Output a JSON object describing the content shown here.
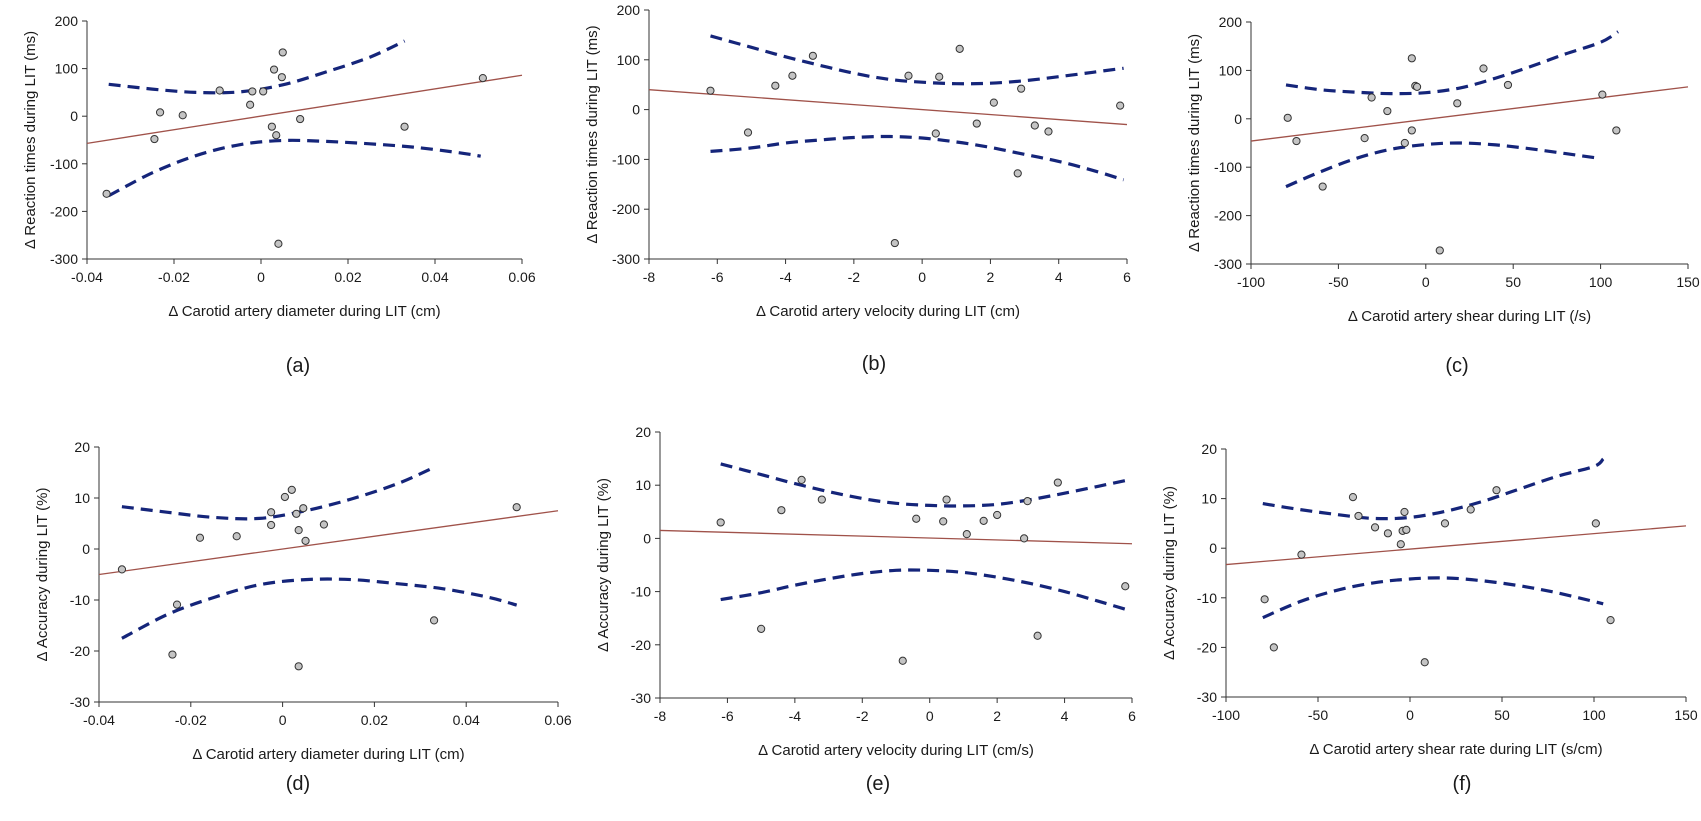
{
  "figure": {
    "colors": {
      "fit_line": "#a0524a",
      "ci_band": "#15257a",
      "point_fill": "#c4c4c4",
      "point_stroke": "#333333",
      "axis": "#333333"
    }
  },
  "chart_data": [
    {
      "type": "scatter",
      "panel_label": "(a)",
      "xlabel": "Δ Carotid artery diameter during LIT (cm)",
      "ylabel": "Δ Reaction times during LIT (ms)",
      "xlim": [
        -0.04,
        0.06
      ],
      "ylim": [
        -300,
        200
      ],
      "xticks": [
        -0.04,
        -0.02,
        0,
        0.02,
        0.04,
        0.06
      ],
      "xtick_labels": [
        "-0.04",
        "-0.02",
        "0",
        "0.02",
        "0.04",
        "0.06"
      ],
      "yticks": [
        -300,
        -200,
        -100,
        0,
        100,
        200
      ],
      "ytick_labels": [
        "-300",
        "-200",
        "-100",
        "0",
        "100",
        "200"
      ],
      "points": [
        [
          -0.0355,
          -163
        ],
        [
          -0.0245,
          -48
        ],
        [
          -0.0232,
          8
        ],
        [
          -0.018,
          2
        ],
        [
          -0.0095,
          54
        ],
        [
          -0.0025,
          24
        ],
        [
          -0.002,
          52
        ],
        [
          0.0005,
          52
        ],
        [
          0.0025,
          -22
        ],
        [
          0.003,
          98
        ],
        [
          0.0035,
          -40
        ],
        [
          0.004,
          -268
        ],
        [
          0.0048,
          82
        ],
        [
          0.005,
          134
        ],
        [
          0.009,
          -6
        ],
        [
          0.033,
          -22
        ],
        [
          0.051,
          80
        ]
      ],
      "fit_line": [
        [
          -0.04,
          -57
        ],
        [
          0.06,
          86
        ]
      ],
      "ci_upper": [
        [
          -0.035,
          67
        ],
        [
          -0.025,
          57
        ],
        [
          -0.015,
          50
        ],
        [
          -0.005,
          51
        ],
        [
          0.005,
          66
        ],
        [
          0.015,
          93
        ],
        [
          0.025,
          124
        ],
        [
          0.033,
          158
        ]
      ],
      "ci_lower": [
        [
          -0.035,
          -167
        ],
        [
          -0.025,
          -119
        ],
        [
          -0.015,
          -83
        ],
        [
          -0.005,
          -60
        ],
        [
          0.005,
          -51
        ],
        [
          0.015,
          -53
        ],
        [
          0.025,
          -58
        ],
        [
          0.035,
          -65
        ],
        [
          0.045,
          -76
        ],
        [
          0.0505,
          -84
        ]
      ]
    },
    {
      "type": "scatter",
      "panel_label": "(b)",
      "xlabel": "Δ Carotid artery velocity during LIT (cm)",
      "ylabel": "Δ Reaction times during LIT (ms)",
      "xlim": [
        -8,
        6
      ],
      "ylim": [
        -300,
        200
      ],
      "xticks": [
        -8,
        -6,
        -4,
        -2,
        0,
        2,
        4,
        6
      ],
      "xtick_labels": [
        "-8",
        "-6",
        "-4",
        "-2",
        "0",
        "2",
        "4",
        "6"
      ],
      "yticks": [
        -300,
        -200,
        -100,
        0,
        100,
        200
      ],
      "ytick_labels": [
        "-300",
        "-200",
        "-100",
        "0",
        "100",
        "200"
      ],
      "points": [
        [
          -6.2,
          38
        ],
        [
          -5.1,
          -46
        ],
        [
          -4.3,
          48
        ],
        [
          -3.8,
          68
        ],
        [
          -3.2,
          108
        ],
        [
          -0.8,
          -268
        ],
        [
          -0.4,
          68
        ],
        [
          0.4,
          -48
        ],
        [
          0.5,
          66
        ],
        [
          1.1,
          122
        ],
        [
          1.6,
          -28
        ],
        [
          2.1,
          14
        ],
        [
          2.8,
          -128
        ],
        [
          2.9,
          42
        ],
        [
          3.3,
          -32
        ],
        [
          3.7,
          -44
        ],
        [
          5.8,
          8
        ]
      ],
      "fit_line": [
        [
          -8,
          40
        ],
        [
          6,
          -30
        ]
      ],
      "ci_upper": [
        [
          -6.2,
          148
        ],
        [
          -5,
          125
        ],
        [
          -4,
          106
        ],
        [
          -3,
          89
        ],
        [
          -2,
          73
        ],
        [
          -1,
          61
        ],
        [
          0,
          55
        ],
        [
          1,
          52
        ],
        [
          2,
          53
        ],
        [
          3,
          58
        ],
        [
          4,
          66
        ],
        [
          5,
          75
        ],
        [
          5.9,
          83
        ]
      ],
      "ci_lower": [
        [
          -6.2,
          -84
        ],
        [
          -5,
          -77
        ],
        [
          -4,
          -67
        ],
        [
          -3,
          -61
        ],
        [
          -2,
          -56
        ],
        [
          -1,
          -54
        ],
        [
          0,
          -57
        ],
        [
          1,
          -65
        ],
        [
          2,
          -76
        ],
        [
          3,
          -90
        ],
        [
          4,
          -104
        ],
        [
          5,
          -122
        ],
        [
          5.9,
          -141
        ]
      ]
    },
    {
      "type": "scatter",
      "panel_label": "(c)",
      "xlabel": "Δ Carotid artery shear during LIT (/s)",
      "ylabel": "Δ Reaction times during LIT (ms)",
      "xlim": [
        -100,
        150
      ],
      "ylim": [
        -300,
        200
      ],
      "xticks": [
        -100,
        -50,
        0,
        50,
        100,
        150
      ],
      "xtick_labels": [
        "-100",
        "-50",
        "0",
        "50",
        "100",
        "150"
      ],
      "yticks": [
        -300,
        -200,
        -100,
        0,
        100,
        200
      ],
      "ytick_labels": [
        "-300",
        "-200",
        "-100",
        "0",
        "100",
        "200"
      ],
      "points": [
        [
          -79,
          2
        ],
        [
          -74,
          -46
        ],
        [
          -59,
          -140
        ],
        [
          -35,
          -40
        ],
        [
          -31,
          44
        ],
        [
          -22,
          16
        ],
        [
          -12,
          -50
        ],
        [
          -8,
          -24
        ],
        [
          -8,
          125
        ],
        [
          -6,
          68
        ],
        [
          -5,
          66
        ],
        [
          8,
          -272
        ],
        [
          18,
          32
        ],
        [
          33,
          104
        ],
        [
          47,
          70
        ],
        [
          101,
          50
        ],
        [
          109,
          -24
        ]
      ],
      "fit_line": [
        [
          -100,
          -46
        ],
        [
          150,
          66
        ]
      ],
      "ci_upper": [
        [
          -80,
          70
        ],
        [
          -60,
          60
        ],
        [
          -40,
          55
        ],
        [
          -20,
          52
        ],
        [
          0,
          54
        ],
        [
          20,
          64
        ],
        [
          40,
          84
        ],
        [
          60,
          108
        ],
        [
          80,
          134
        ],
        [
          100,
          158
        ],
        [
          110,
          180
        ]
      ],
      "ci_lower": [
        [
          -80,
          -140
        ],
        [
          -60,
          -109
        ],
        [
          -40,
          -82
        ],
        [
          -20,
          -63
        ],
        [
          0,
          -53
        ],
        [
          20,
          -50
        ],
        [
          40,
          -54
        ],
        [
          60,
          -62
        ],
        [
          80,
          -72
        ],
        [
          100,
          -82
        ]
      ]
    },
    {
      "type": "scatter",
      "panel_label": "(d)",
      "xlabel": "Δ Carotid artery diameter during LIT (cm)",
      "ylabel": "Δ Accuracy during LIT (%)",
      "xlim": [
        -0.04,
        0.06
      ],
      "ylim": [
        -30,
        20
      ],
      "xticks": [
        -0.04,
        -0.02,
        0,
        0.02,
        0.04,
        0.06
      ],
      "xtick_labels": [
        "-0.04",
        "-0.02",
        "0",
        "0.02",
        "0.04",
        "0.06"
      ],
      "yticks": [
        -30,
        -20,
        -10,
        0,
        10,
        20
      ],
      "ytick_labels": [
        "-30",
        "-20",
        "-10",
        "0",
        "10",
        "20"
      ],
      "points": [
        [
          -0.035,
          -4
        ],
        [
          -0.024,
          -20.7
        ],
        [
          -0.023,
          -10.9
        ],
        [
          -0.018,
          2.2
        ],
        [
          -0.01,
          2.5
        ],
        [
          -0.0025,
          4.7
        ],
        [
          -0.0025,
          7.2
        ],
        [
          0.0005,
          10.2
        ],
        [
          0.002,
          11.6
        ],
        [
          0.003,
          6.9
        ],
        [
          0.0035,
          3.7
        ],
        [
          0.0035,
          -23
        ],
        [
          0.0045,
          8
        ],
        [
          0.005,
          1.6
        ],
        [
          0.009,
          4.8
        ],
        [
          0.033,
          -14
        ],
        [
          0.051,
          8.2
        ]
      ],
      "fit_line": [
        [
          -0.04,
          -5
        ],
        [
          0.06,
          7.5
        ]
      ],
      "ci_upper": [
        [
          -0.035,
          8.3
        ],
        [
          -0.025,
          7.2
        ],
        [
          -0.015,
          6.2
        ],
        [
          -0.005,
          6.0
        ],
        [
          0.005,
          7.5
        ],
        [
          0.015,
          9.8
        ],
        [
          0.025,
          12.8
        ],
        [
          0.033,
          16.0
        ]
      ],
      "ci_lower": [
        [
          -0.035,
          -17.5
        ],
        [
          -0.025,
          -12.8
        ],
        [
          -0.015,
          -9.5
        ],
        [
          -0.005,
          -7.0
        ],
        [
          0.005,
          -6.0
        ],
        [
          0.015,
          -6.0
        ],
        [
          0.025,
          -6.8
        ],
        [
          0.035,
          -7.8
        ],
        [
          0.045,
          -9.5
        ],
        [
          0.051,
          -11.0
        ]
      ]
    },
    {
      "type": "scatter",
      "panel_label": "(e)",
      "xlabel": "Δ Carotid artery velocity during LIT (cm/s)",
      "ylabel": "Δ Accuracy during LIT (%)",
      "xlim": [
        -8,
        6
      ],
      "ylim": [
        -30,
        20
      ],
      "xticks": [
        -8,
        -6,
        -4,
        -2,
        0,
        2,
        4,
        6
      ],
      "xtick_labels": [
        "-8",
        "-6",
        "-4",
        "-2",
        "0",
        "2",
        "4",
        "6"
      ],
      "yticks": [
        -30,
        -20,
        -10,
        0,
        10,
        20
      ],
      "ytick_labels": [
        "-30",
        "-20",
        "-10",
        "0",
        "10",
        "20"
      ],
      "points": [
        [
          -6.2,
          3
        ],
        [
          -5,
          -17
        ],
        [
          -4.4,
          5.3
        ],
        [
          -3.8,
          11
        ],
        [
          -3.2,
          7.3
        ],
        [
          -0.8,
          -23
        ],
        [
          -0.4,
          3.7
        ],
        [
          0.4,
          3.2
        ],
        [
          0.5,
          7.3
        ],
        [
          1.1,
          0.8
        ],
        [
          1.6,
          3.3
        ],
        [
          2.0,
          4.4
        ],
        [
          2.8,
          0
        ],
        [
          2.9,
          7
        ],
        [
          3.2,
          -18.3
        ],
        [
          3.8,
          10.5
        ],
        [
          5.8,
          -9
        ]
      ],
      "fit_line": [
        [
          -8,
          1.5
        ],
        [
          6,
          -1
        ]
      ],
      "ci_upper": [
        [
          -6.2,
          14
        ],
        [
          -5,
          12
        ],
        [
          -4,
          10.3
        ],
        [
          -3,
          8.8
        ],
        [
          -2,
          7.5
        ],
        [
          -1,
          6.6
        ],
        [
          0,
          6.2
        ],
        [
          1,
          6.1
        ],
        [
          2,
          6.4
        ],
        [
          3,
          7.3
        ],
        [
          4,
          8.5
        ],
        [
          5,
          9.8
        ],
        [
          5.9,
          11
        ]
      ],
      "ci_lower": [
        [
          -6.2,
          -11.5
        ],
        [
          -5,
          -10.2
        ],
        [
          -4,
          -8.8
        ],
        [
          -3,
          -7.6
        ],
        [
          -2,
          -6.6
        ],
        [
          -1,
          -6.0
        ],
        [
          0,
          -6.0
        ],
        [
          1,
          -6.4
        ],
        [
          2,
          -7.3
        ],
        [
          3,
          -8.5
        ],
        [
          4,
          -10.0
        ],
        [
          5,
          -11.8
        ],
        [
          5.9,
          -13.5
        ]
      ]
    },
    {
      "type": "scatter",
      "panel_label": "(f)",
      "xlabel": "Δ Carotid artery shear rate during LIT (s/cm)",
      "ylabel": "Δ Accuracy during LIT (%)",
      "xlim": [
        -100,
        150
      ],
      "ylim": [
        -30,
        20
      ],
      "xticks": [
        -100,
        -50,
        0,
        50,
        100,
        150
      ],
      "xtick_labels": [
        "-100",
        "-50",
        "0",
        "50",
        "100",
        "150"
      ],
      "yticks": [
        -30,
        -20,
        -10,
        0,
        10,
        20
      ],
      "ytick_labels": [
        "-30",
        "-20",
        "-10",
        "0",
        "10",
        "20"
      ],
      "points": [
        [
          -79,
          -10.3
        ],
        [
          -74,
          -20
        ],
        [
          -59,
          -1.3
        ],
        [
          -31,
          10.3
        ],
        [
          -28,
          6.5
        ],
        [
          -19,
          4.2
        ],
        [
          -12,
          3
        ],
        [
          -5,
          0.8
        ],
        [
          -4,
          3.5
        ],
        [
          -3,
          7.3
        ],
        [
          -2,
          3.7
        ],
        [
          8,
          -23
        ],
        [
          19,
          5
        ],
        [
          33,
          7.8
        ],
        [
          47,
          11.7
        ],
        [
          101,
          5
        ],
        [
          109,
          -14.5
        ]
      ],
      "fit_line": [
        [
          -100,
          -3.3
        ],
        [
          150,
          4.5
        ]
      ],
      "ci_upper": [
        [
          -80,
          9
        ],
        [
          -60,
          7.8
        ],
        [
          -40,
          6.8
        ],
        [
          -20,
          6.0
        ],
        [
          0,
          6.2
        ],
        [
          20,
          7.5
        ],
        [
          40,
          9.5
        ],
        [
          60,
          12
        ],
        [
          80,
          14.5
        ],
        [
          100,
          16.5
        ],
        [
          105,
          18
        ]
      ],
      "ci_lower": [
        [
          -80,
          -14
        ],
        [
          -60,
          -10.8
        ],
        [
          -40,
          -8.5
        ],
        [
          -20,
          -7
        ],
        [
          0,
          -6.2
        ],
        [
          20,
          -6
        ],
        [
          40,
          -6.6
        ],
        [
          60,
          -7.6
        ],
        [
          80,
          -9
        ],
        [
          105,
          -11.2
        ]
      ]
    }
  ]
}
